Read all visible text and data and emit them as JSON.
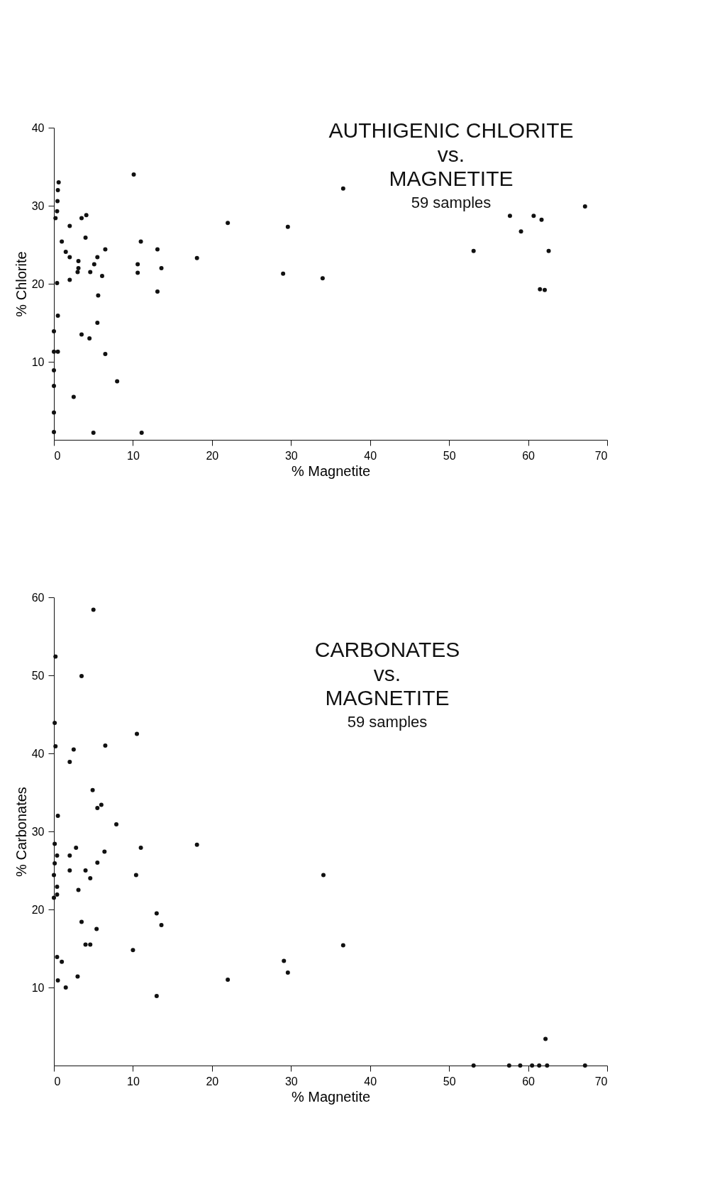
{
  "chart_data": [
    {
      "type": "scatter",
      "title": "AUTHIGENIC CHLORITE\nvs.\nMAGNETITE",
      "subtitle": "59 samples",
      "xlabel": "% Magnetite",
      "ylabel": "% Chlorite",
      "marker": "circle",
      "grid": false,
      "xlim": [
        0,
        70
      ],
      "xticks": [
        0,
        10,
        20,
        30,
        40,
        50,
        60,
        70
      ],
      "ylim": [
        0,
        40
      ],
      "yticks": [
        10,
        20,
        30,
        40
      ],
      "series": [
        {
          "color": "#111111",
          "x": [
            0.6,
            0.5,
            0.45,
            0.4,
            0.2,
            10.1,
            4.1,
            3.5,
            2.0,
            4.0,
            1.0,
            11.0,
            6.5,
            13.1,
            1.5,
            2.0,
            5.5,
            3.1,
            5.1,
            10.6,
            3.1,
            13.6,
            3.0,
            4.6,
            10.6,
            6.1,
            2.0,
            0.4,
            18.1,
            5.6,
            13.1,
            0.5,
            5.5,
            0,
            3.5,
            4.5,
            0,
            0.5,
            6.5,
            0,
            8.0,
            0,
            2.5,
            0,
            0,
            5.0,
            11.1,
            22.0,
            29.6,
            29.0,
            34.0,
            36.6,
            57.7,
            60.7,
            61.7,
            59.1,
            67.2,
            53.1,
            62.6,
            61.5,
            62.1
          ],
          "values": [
            33.0,
            32.0,
            30.6,
            29.3,
            28.4,
            34.0,
            28.8,
            28.4,
            27.4,
            25.9,
            25.4,
            25.4,
            24.4,
            24.4,
            24.1,
            23.4,
            23.4,
            22.9,
            22.5,
            22.5,
            22.0,
            22.0,
            21.5,
            21.5,
            21.4,
            21.0,
            20.5,
            20.1,
            23.3,
            18.5,
            19.0,
            15.9,
            15.0,
            13.9,
            13.5,
            13.0,
            11.3,
            11.3,
            11.0,
            8.9,
            7.5,
            6.9,
            5.5,
            3.5,
            1.0,
            0.9,
            0.9,
            27.8,
            27.3,
            21.3,
            20.7,
            32.2,
            28.7,
            28.7,
            28.2,
            26.7,
            29.9,
            24.2,
            24.2,
            19.3,
            19.2
          ]
        }
      ]
    },
    {
      "type": "scatter",
      "title": "CARBONATES\nvs.\nMAGNETITE",
      "subtitle": "59 samples",
      "xlabel": "% Magnetite",
      "ylabel": "% Carbonates",
      "marker": "circle",
      "grid": false,
      "xlim": [
        0,
        70
      ],
      "xticks": [
        0,
        10,
        20,
        30,
        40,
        50,
        60,
        70
      ],
      "ylim": [
        0,
        60
      ],
      "yticks": [
        10,
        20,
        30,
        40,
        50,
        60
      ],
      "series": [
        {
          "color": "#111111",
          "x": [
            5.0,
            0.2,
            3.5,
            0.1,
            10.5,
            0.2,
            6.5,
            2.5,
            2.0,
            4.9,
            5.5,
            6.0,
            0.5,
            7.9,
            0.1,
            18.1,
            2.8,
            11.0,
            0.4,
            2.0,
            6.4,
            0.1,
            5.5,
            2.0,
            4.0,
            4.6,
            0,
            10.4,
            0.4,
            3.1,
            0.4,
            0,
            13.0,
            3.5,
            13.6,
            5.4,
            4.0,
            4.6,
            10.0,
            0.4,
            1.0,
            0.5,
            3.0,
            1.5,
            13.0,
            22.0,
            29.1,
            29.6,
            34.1,
            36.6,
            62.2,
            53.1,
            57.6,
            59.0,
            60.5,
            61.4,
            62.4,
            67.2
          ],
          "values": [
            58.4,
            52.4,
            49.9,
            43.9,
            42.5,
            40.9,
            41.0,
            40.5,
            38.9,
            35.3,
            33.0,
            33.4,
            32.0,
            30.9,
            28.4,
            28.3,
            27.9,
            27.9,
            26.9,
            26.9,
            27.4,
            25.9,
            26.0,
            25.0,
            25.0,
            24.0,
            24.4,
            24.4,
            22.9,
            22.5,
            21.9,
            21.5,
            19.5,
            18.4,
            18.0,
            17.5,
            15.5,
            15.5,
            14.8,
            13.9,
            13.3,
            10.9,
            11.4,
            10.0,
            8.9,
            11.0,
            13.4,
            11.9,
            24.4,
            15.4,
            3.4,
            0,
            0,
            0,
            0,
            0,
            0,
            0
          ]
        }
      ]
    }
  ]
}
